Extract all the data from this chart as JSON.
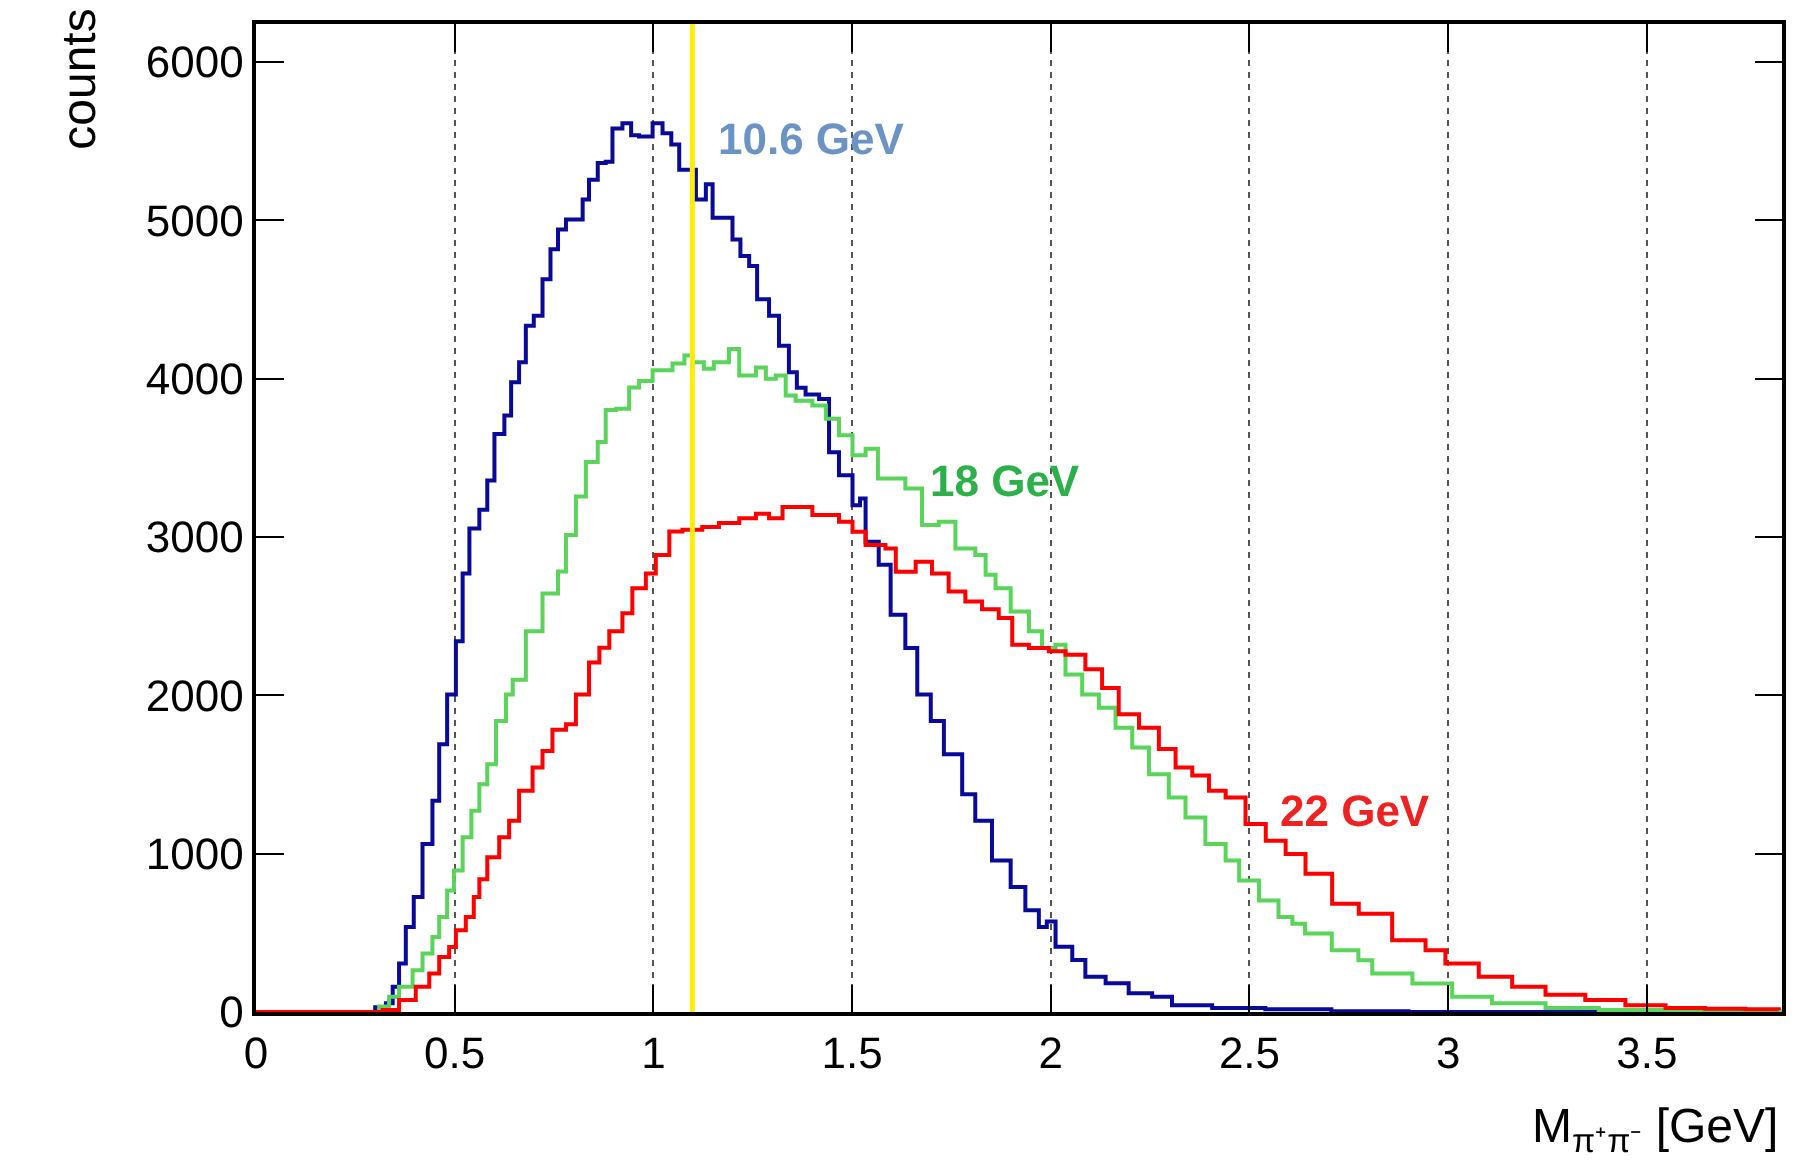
{
  "chart_data": {
    "type": "step",
    "xlabel": "M$_{π⁺π⁻}$ [GeV]",
    "ylabel": "counts",
    "xlim": [
      0,
      3.84
    ],
    "ylim": [
      0,
      6240
    ],
    "xticks": [
      0,
      0.5,
      1,
      1.5,
      2,
      2.5,
      3,
      3.5
    ],
    "yticks": [
      0,
      1000,
      2000,
      3000,
      4000,
      5000,
      6000
    ],
    "grid": "x",
    "legend": false,
    "line_style": "solid",
    "marker": "none",
    "series": [
      {
        "name": "10.6 GeV",
        "color": "#0a0a9a",
        "x": [
          0,
          0.3,
          0.327,
          0.344,
          0.36,
          0.377,
          0.397,
          0.419,
          0.444,
          0.461,
          0.481,
          0.503,
          0.52,
          0.537,
          0.562,
          0.582,
          0.6,
          0.625,
          0.642,
          0.662,
          0.679,
          0.699,
          0.721,
          0.741,
          0.76,
          0.78,
          0.796,
          0.822,
          0.838,
          0.86,
          0.88,
          0.897,
          0.922,
          0.944,
          0.964,
          0.998,
          1.023,
          1.045,
          1.065,
          1.085,
          1.107,
          1.132,
          1.149,
          1.199,
          1.219,
          1.241,
          1.261,
          1.291,
          1.316,
          1.341,
          1.361,
          1.383,
          1.417,
          1.442,
          1.467,
          1.501,
          1.52,
          1.534,
          1.567,
          1.597,
          1.634,
          1.664,
          1.698,
          1.731,
          1.777,
          1.81,
          1.852,
          1.899,
          1.936,
          1.97,
          1.99,
          2.012,
          2.054,
          2.087,
          2.138,
          2.196,
          2.255,
          2.305,
          2.406,
          2.54,
          2.706,
          2.9,
          3.84
        ],
        "values": [
          0,
          30,
          55,
          160,
          306,
          537,
          726,
          1061,
          1334,
          1691,
          2005,
          2341,
          2769,
          3054,
          3172,
          3357,
          3650,
          3767,
          3977,
          4103,
          4334,
          4397,
          4628,
          4817,
          4942,
          5005,
          5005,
          5131,
          5257,
          5362,
          5370,
          5580,
          5613,
          5538,
          5529,
          5613,
          5550,
          5479,
          5320,
          5320,
          5131,
          5228,
          5017,
          4879,
          4774,
          4711,
          4501,
          4397,
          4208,
          4040,
          3943,
          3900,
          3872,
          3536,
          3390,
          3201,
          3243,
          2970,
          2824,
          2509,
          2299,
          2005,
          1838,
          1628,
          1376,
          1208,
          957,
          789,
          642,
          537,
          571,
          412,
          328,
          223,
          181,
          118,
          97,
          42,
          25,
          17,
          5,
          0,
          0
        ]
      },
      {
        "name": "18 GeV",
        "color": "#5ad45a",
        "x": [
          0,
          0.31,
          0.335,
          0.36,
          0.394,
          0.419,
          0.444,
          0.461,
          0.481,
          0.498,
          0.52,
          0.542,
          0.562,
          0.582,
          0.604,
          0.629,
          0.646,
          0.679,
          0.721,
          0.76,
          0.78,
          0.805,
          0.83,
          0.86,
          0.88,
          0.906,
          0.939,
          0.964,
          0.998,
          1.023,
          1.048,
          1.078,
          1.098,
          1.127,
          1.152,
          1.19,
          1.216,
          1.258,
          1.283,
          1.308,
          1.333,
          1.358,
          1.4,
          1.434,
          1.467,
          1.501,
          1.534,
          1.565,
          1.61,
          1.634,
          1.676,
          1.718,
          1.76,
          1.81,
          1.836,
          1.861,
          1.899,
          1.945,
          1.978,
          2.012,
          2.037,
          2.079,
          2.121,
          2.163,
          2.205,
          2.247,
          2.297,
          2.339,
          2.389,
          2.44,
          2.474,
          2.524,
          2.573,
          2.608,
          2.64,
          2.707,
          2.774,
          2.809,
          2.91,
          3.01,
          3.11,
          3.245,
          3.379,
          3.547,
          3.84
        ],
        "values": [
          0,
          34,
          97,
          160,
          264,
          369,
          474,
          600,
          768,
          894,
          1104,
          1271,
          1439,
          1565,
          1838,
          2006,
          2098,
          2404,
          2643,
          2782,
          3013,
          3256,
          3474,
          3600,
          3802,
          3810,
          3944,
          3986,
          4053,
          4053,
          4095,
          4146,
          4104,
          4062,
          4104,
          4188,
          4020,
          4070,
          3999,
          4020,
          3894,
          3860,
          3831,
          3747,
          3642,
          3516,
          3558,
          3369,
          3369,
          3306,
          3075,
          3096,
          2928,
          2886,
          2761,
          2677,
          2530,
          2404,
          2299,
          2320,
          2131,
          2006,
          1922,
          1796,
          1670,
          1502,
          1355,
          1229,
          1061,
          957,
          831,
          705,
          600,
          558,
          495,
          390,
          327,
          243,
          180,
          96,
          55,
          25,
          13,
          4,
          0
        ]
      },
      {
        "name": "22 GeV",
        "color": "#ff0000",
        "x": [
          0,
          0.319,
          0.36,
          0.402,
          0.436,
          0.461,
          0.486,
          0.503,
          0.528,
          0.548,
          0.562,
          0.582,
          0.612,
          0.637,
          0.662,
          0.696,
          0.721,
          0.746,
          0.78,
          0.805,
          0.838,
          0.864,
          0.889,
          0.922,
          0.947,
          0.981,
          1.006,
          1.04,
          1.073,
          1.123,
          1.165,
          1.216,
          1.258,
          1.291,
          1.325,
          1.367,
          1.4,
          1.467,
          1.501,
          1.534,
          1.584,
          1.61,
          1.66,
          1.701,
          1.743,
          1.785,
          1.827,
          1.869,
          1.903,
          1.945,
          1.995,
          2.037,
          2.087,
          2.129,
          2.171,
          2.222,
          2.272,
          2.314,
          2.356,
          2.398,
          2.44,
          2.49,
          2.541,
          2.591,
          2.641,
          2.708,
          2.775,
          2.859,
          2.943,
          2.993,
          3.077,
          3.161,
          3.245,
          3.345,
          3.446,
          3.547,
          3.647,
          3.748,
          3.832
        ],
        "values": [
          0,
          13,
          76,
          160,
          243,
          348,
          411,
          516,
          600,
          726,
          839,
          978,
          1104,
          1208,
          1397,
          1544,
          1649,
          1783,
          1817,
          2006,
          2207,
          2300,
          2404,
          2518,
          2677,
          2769,
          2887,
          3034,
          3046,
          3063,
          3088,
          3118,
          3147,
          3118,
          3189,
          3189,
          3139,
          3096,
          3033,
          2949,
          2928,
          2781,
          2844,
          2769,
          2656,
          2593,
          2543,
          2488,
          2320,
          2299,
          2278,
          2257,
          2165,
          2047,
          1880,
          1796,
          1661,
          1544,
          1494,
          1397,
          1355,
          1187,
          1082,
          998,
          873,
          684,
          621,
          453,
          390,
          306,
          222,
          159,
          109,
          76,
          42,
          25,
          21,
          17,
          13
        ]
      }
    ],
    "ref_lines": [
      {
        "axis": "x",
        "value": 1.098,
        "color": "#ffee00"
      }
    ]
  }
}
